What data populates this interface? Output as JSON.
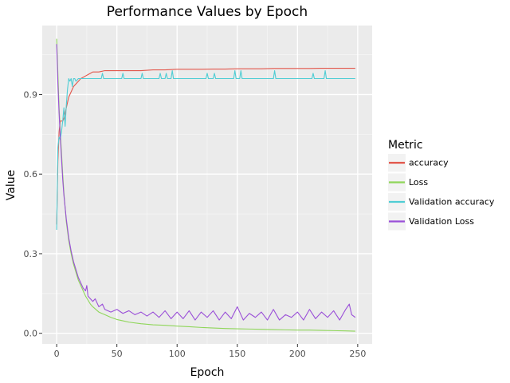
{
  "chart_data": {
    "type": "line",
    "title": "Performance Values by Epoch",
    "xlabel": "Epoch",
    "ylabel": "Value",
    "xlim": [
      -12,
      262
    ],
    "ylim": [
      -0.04,
      1.16
    ],
    "x_ticks": [
      0,
      50,
      100,
      150,
      200,
      250
    ],
    "x_tick_labels": [
      "0",
      "50",
      "100",
      "150",
      "200",
      "250"
    ],
    "y_ticks": [
      0.0,
      0.3,
      0.6,
      0.9
    ],
    "y_tick_labels": [
      "0.0",
      "0.3",
      "0.6",
      "0.9"
    ],
    "grid": true,
    "legend": {
      "title": "Metric",
      "placement": "right"
    },
    "series": [
      {
        "name": "accuracy",
        "color": "#e2574c",
        "x": [
          0,
          1,
          2,
          3,
          4,
          5,
          6,
          8,
          10,
          12,
          14,
          16,
          18,
          20,
          22,
          24,
          26,
          28,
          30,
          35,
          40,
          50,
          60,
          70,
          80,
          90,
          100,
          110,
          120,
          130,
          140,
          150,
          160,
          170,
          180,
          190,
          200,
          210,
          220,
          230,
          240,
          248
        ],
        "y": [
          0.41,
          0.65,
          0.76,
          0.8,
          0.8,
          0.8,
          0.81,
          0.85,
          0.89,
          0.91,
          0.93,
          0.94,
          0.95,
          0.96,
          0.965,
          0.97,
          0.975,
          0.98,
          0.985,
          0.985,
          0.99,
          0.99,
          0.99,
          0.99,
          0.993,
          0.993,
          0.995,
          0.995,
          0.995,
          0.996,
          0.996,
          0.997,
          0.997,
          0.997,
          0.998,
          0.998,
          0.998,
          0.998,
          0.999,
          0.999,
          0.999,
          0.999
        ]
      },
      {
        "name": "Loss",
        "color": "#8fd65a",
        "x": [
          0,
          1,
          2,
          3,
          4,
          5,
          6,
          8,
          10,
          12,
          14,
          16,
          18,
          20,
          22,
          24,
          26,
          28,
          30,
          35,
          40,
          45,
          50,
          55,
          60,
          70,
          80,
          90,
          100,
          110,
          120,
          130,
          140,
          150,
          160,
          170,
          180,
          190,
          200,
          210,
          220,
          230,
          240,
          248
        ],
        "y": [
          1.11,
          0.98,
          0.85,
          0.76,
          0.68,
          0.6,
          0.53,
          0.42,
          0.35,
          0.3,
          0.26,
          0.23,
          0.2,
          0.18,
          0.16,
          0.14,
          0.125,
          0.11,
          0.1,
          0.08,
          0.07,
          0.06,
          0.052,
          0.047,
          0.042,
          0.036,
          0.032,
          0.03,
          0.027,
          0.025,
          0.022,
          0.02,
          0.018,
          0.017,
          0.016,
          0.015,
          0.014,
          0.013,
          0.012,
          0.012,
          0.011,
          0.01,
          0.009,
          0.008
        ]
      },
      {
        "name": "Validation accuracy",
        "color": "#4fcdd4",
        "x": [
          0,
          1,
          2,
          3,
          4,
          5,
          6,
          7,
          8,
          9,
          10,
          11,
          12,
          13,
          14,
          15,
          16,
          18,
          20,
          22,
          24,
          26,
          30,
          37,
          38,
          39,
          54,
          55,
          56,
          70,
          71,
          72,
          85,
          86,
          87,
          90,
          91,
          92,
          95,
          96,
          97,
          124,
          125,
          126,
          130,
          131,
          132,
          147,
          148,
          149,
          152,
          153,
          154,
          180,
          181,
          182,
          212,
          213,
          214,
          222,
          223,
          224,
          248
        ],
        "y": [
          0.39,
          0.7,
          0.74,
          0.73,
          0.76,
          0.8,
          0.85,
          0.78,
          0.86,
          0.92,
          0.96,
          0.95,
          0.96,
          0.93,
          0.96,
          0.96,
          0.95,
          0.96,
          0.96,
          0.96,
          0.96,
          0.96,
          0.96,
          0.96,
          0.98,
          0.96,
          0.96,
          0.98,
          0.96,
          0.96,
          0.98,
          0.96,
          0.96,
          0.98,
          0.96,
          0.96,
          0.98,
          0.96,
          0.96,
          0.99,
          0.96,
          0.96,
          0.98,
          0.96,
          0.96,
          0.98,
          0.96,
          0.96,
          0.99,
          0.96,
          0.96,
          0.99,
          0.96,
          0.96,
          0.99,
          0.96,
          0.96,
          0.98,
          0.96,
          0.96,
          0.99,
          0.96,
          0.96
        ]
      },
      {
        "name": "Validation Loss",
        "color": "#9a4fd8",
        "x": [
          0,
          1,
          2,
          3,
          4,
          5,
          6,
          8,
          10,
          12,
          14,
          16,
          18,
          20,
          22,
          24,
          25,
          26,
          28,
          30,
          32,
          35,
          38,
          40,
          45,
          50,
          55,
          60,
          65,
          70,
          75,
          80,
          85,
          90,
          95,
          100,
          105,
          110,
          115,
          120,
          125,
          130,
          135,
          140,
          145,
          150,
          155,
          160,
          165,
          170,
          175,
          180,
          185,
          190,
          195,
          200,
          205,
          210,
          215,
          220,
          225,
          230,
          235,
          240,
          243,
          245,
          248
        ],
        "y": [
          1.09,
          0.94,
          0.83,
          0.74,
          0.66,
          0.58,
          0.52,
          0.43,
          0.36,
          0.31,
          0.27,
          0.24,
          0.21,
          0.19,
          0.17,
          0.16,
          0.18,
          0.14,
          0.13,
          0.12,
          0.13,
          0.1,
          0.11,
          0.09,
          0.08,
          0.09,
          0.075,
          0.085,
          0.07,
          0.08,
          0.065,
          0.08,
          0.06,
          0.085,
          0.055,
          0.08,
          0.055,
          0.085,
          0.05,
          0.08,
          0.06,
          0.085,
          0.05,
          0.08,
          0.055,
          0.1,
          0.05,
          0.075,
          0.06,
          0.08,
          0.05,
          0.09,
          0.05,
          0.07,
          0.06,
          0.08,
          0.05,
          0.09,
          0.055,
          0.08,
          0.06,
          0.085,
          0.05,
          0.09,
          0.11,
          0.07,
          0.06
        ]
      }
    ]
  }
}
